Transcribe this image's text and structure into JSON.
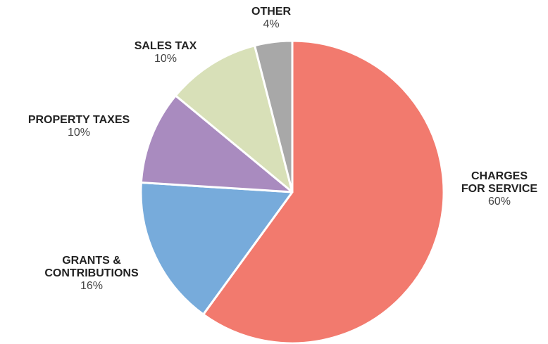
{
  "chart_data": {
    "type": "pie",
    "categories": [
      "CHARGES\nFOR SERVICE",
      "GRANTS &\nCONTRIBUTIONS",
      "PROPERTY TAXES",
      "SALES TAX",
      "OTHER"
    ],
    "values": [
      60,
      16,
      10,
      10,
      4
    ],
    "value_labels": [
      "60%",
      "16%",
      "10%",
      "10%",
      "4%"
    ],
    "colors": [
      "#f27a6e",
      "#77abdb",
      "#a98bbf",
      "#d8e0b8",
      "#a8a8a8"
    ]
  }
}
